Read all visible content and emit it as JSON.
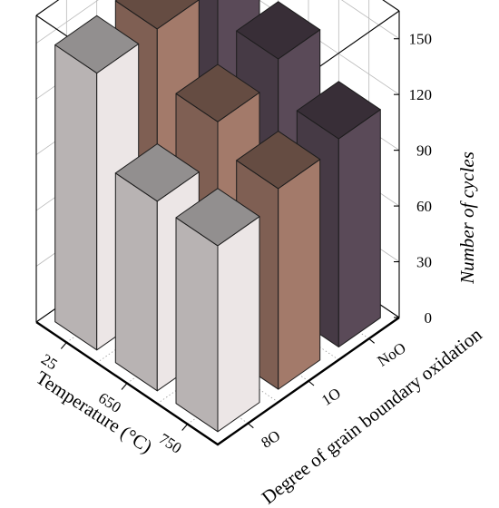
{
  "chart_data": {
    "type": "bar3d",
    "z_label": "Number of cycles",
    "x_label": "Temperature (°C)",
    "y_label": "Degree of grain boundary oxidation",
    "temperatures": [
      "25",
      "650",
      "750"
    ],
    "oxidation_levels": [
      "NoO",
      "1O",
      "8O"
    ],
    "z_ticks": [
      "0",
      "30",
      "60",
      "90",
      "120",
      "150"
    ],
    "zlim": [
      0,
      165
    ],
    "grid": true,
    "series": [
      {
        "oxidation": "NoO",
        "values": [
          150,
          133,
          112
        ],
        "color": "#5a4a58"
      },
      {
        "oxidation": "1O",
        "values": [
          150,
          122,
          108
        ],
        "color": "#a37a6a"
      },
      {
        "oxidation": "8O",
        "values": [
          149,
          102,
          100
        ],
        "color": "#ece6e6"
      }
    ]
  }
}
